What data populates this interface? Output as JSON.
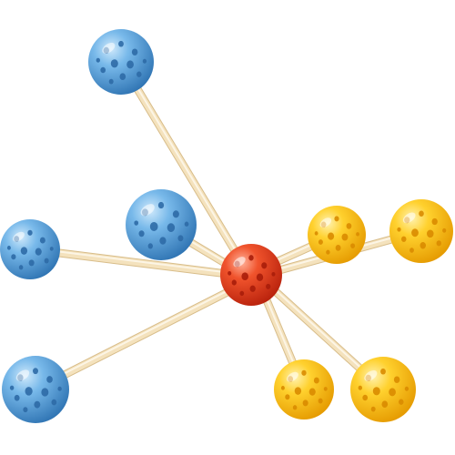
{
  "image": {
    "subject": "molecular-model-toy",
    "background_color": "#ffffff"
  },
  "colors": {
    "blue": "#6fb3e6",
    "blue_shadow": "#2f74b3",
    "blue_hole": "#2d6aa6",
    "yellow": "#ffd12e",
    "yellow_shadow": "#e59a00",
    "yellow_hole": "#d98b00",
    "red": "#f0532c",
    "red_shadow": "#b8210c",
    "red_hole": "#a81d0a",
    "rod": "#f4e2bd",
    "rod_shadow": "#d8bd8a"
  },
  "model": {
    "center_ball": {
      "color": "red"
    },
    "balls": [
      {
        "color": "blue"
      },
      {
        "color": "blue"
      },
      {
        "color": "blue"
      },
      {
        "color": "blue"
      },
      {
        "color": "yellow"
      },
      {
        "color": "yellow"
      },
      {
        "color": "yellow"
      },
      {
        "color": "yellow"
      }
    ]
  }
}
